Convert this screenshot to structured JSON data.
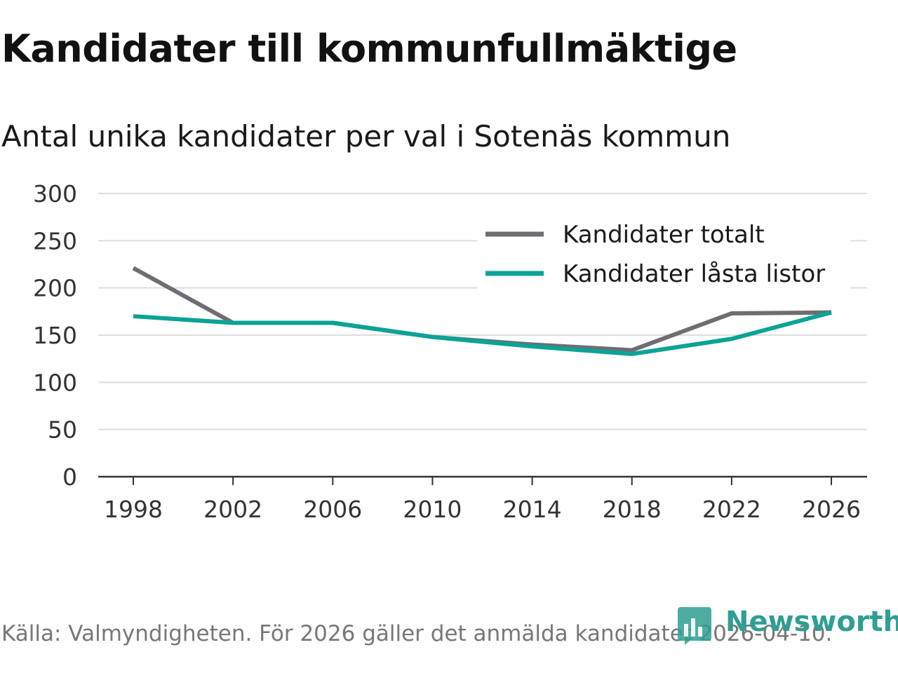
{
  "chart_data": {
    "type": "line",
    "title": "Kandidater till kommunfullmäktige",
    "subtitle": "Antal unika kandidater per val i Sotenäs kommun",
    "x": [
      1998,
      2002,
      2006,
      2010,
      2014,
      2018,
      2022,
      2026
    ],
    "xticks": [
      "1998",
      "2002",
      "2006",
      "2010",
      "2014",
      "2018",
      "2022",
      "2026"
    ],
    "yticks": [
      "0",
      "50",
      "100",
      "150",
      "200",
      "250",
      "300"
    ],
    "ylim": [
      0,
      300
    ],
    "xlim": [
      1998,
      2026
    ],
    "grid": true,
    "legend_position": "top-right",
    "series": [
      {
        "name": "Kandidater totalt",
        "color": "#6e6d73",
        "values": [
          221,
          163,
          163,
          148,
          140,
          134,
          173,
          174
        ]
      },
      {
        "name": "Kandidater låsta listor",
        "color": "#0aa396",
        "values": [
          170,
          163,
          163,
          148,
          138,
          130,
          146,
          174
        ]
      }
    ]
  },
  "footer": {
    "source": "Källa: Valmyndigheten. För 2026 gäller det anmälda kandidater 2026-04-10."
  },
  "logo": {
    "text": "Newsworthy",
    "icon": "newsworthy-bar-chart-icon",
    "color": "#2f9e93"
  }
}
